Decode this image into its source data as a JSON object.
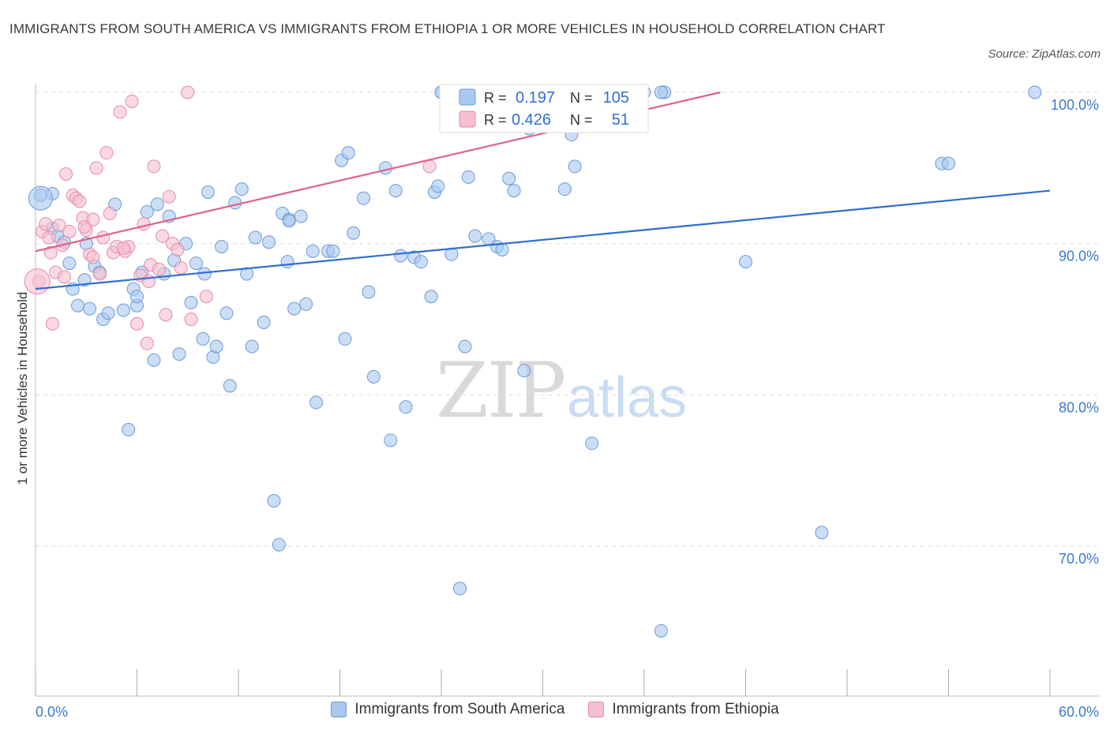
{
  "title": "IMMIGRANTS FROM SOUTH AMERICA VS IMMIGRANTS FROM ETHIOPIA 1 OR MORE VEHICLES IN HOUSEHOLD CORRELATION CHART",
  "source": "Source: ZipAtlas.com",
  "watermark": {
    "zip": "ZIP",
    "atlas": "atlas"
  },
  "colors": {
    "blue": "#a9c8f0",
    "blue_stroke": "#6b9ad8",
    "blue_line": "#2f6fd0",
    "pink": "#f6bfd0",
    "pink_stroke": "#e48aa8",
    "pink_line": "#e0628a",
    "axis_text": "#3b78c9"
  },
  "legend": {
    "r_label": "R =",
    "n_label": "N =",
    "rows": [
      {
        "r": "0.197",
        "n": "105"
      },
      {
        "r": "0.426",
        "n": "51"
      }
    ]
  },
  "bottom_legend": [
    "Immigrants from South America",
    "Immigrants from Ethiopia"
  ],
  "chart_data": {
    "type": "scatter",
    "title": "IMMIGRANTS FROM SOUTH AMERICA VS IMMIGRANTS FROM ETHIOPIA 1 OR MORE VEHICLES IN HOUSEHOLD CORRELATION CHART",
    "xlabel": "",
    "ylabel": "1 or more Vehicles in Household",
    "xlim": [
      0,
      60
    ],
    "ylim": [
      60,
      100
    ],
    "x_tick_labels": [
      "0.0%",
      "60.0%"
    ],
    "y_tick_labels": [
      "100.0%",
      "90.0%",
      "80.0%",
      "70.0%"
    ],
    "y_ticks": [
      100,
      90,
      80,
      70
    ],
    "grid": true,
    "legend_position": "top-center",
    "series": [
      {
        "name": "Immigrants from South America",
        "r": 0.197,
        "n": 105,
        "trend": [
          [
            0,
            87.0
          ],
          [
            60,
            93.5
          ]
        ],
        "points": [
          [
            0.3,
            93.2
          ],
          [
            1.0,
            93.3
          ],
          [
            1.0,
            91.0
          ],
          [
            1.3,
            90.5
          ],
          [
            1.7,
            90.1
          ],
          [
            2.0,
            88.7
          ],
          [
            2.2,
            87.0
          ],
          [
            2.5,
            85.9
          ],
          [
            2.9,
            87.6
          ],
          [
            3.2,
            85.7
          ],
          [
            3.5,
            88.5
          ],
          [
            3.8,
            88.1
          ],
          [
            4.0,
            85.0
          ],
          [
            4.3,
            85.4
          ],
          [
            4.7,
            92.6
          ],
          [
            5.2,
            85.6
          ],
          [
            5.5,
            77.7
          ],
          [
            5.8,
            87.0
          ],
          [
            6.0,
            85.9
          ],
          [
            6.3,
            88.1
          ],
          [
            6.6,
            92.1
          ],
          [
            7.0,
            82.3
          ],
          [
            7.2,
            92.6
          ],
          [
            7.6,
            88.0
          ],
          [
            7.9,
            91.8
          ],
          [
            8.2,
            88.9
          ],
          [
            8.5,
            82.7
          ],
          [
            8.9,
            90.0
          ],
          [
            9.2,
            86.1
          ],
          [
            9.5,
            88.7
          ],
          [
            9.9,
            83.7
          ],
          [
            10.2,
            93.4
          ],
          [
            10.5,
            82.5
          ],
          [
            10.7,
            83.2
          ],
          [
            11.0,
            89.8
          ],
          [
            11.3,
            85.4
          ],
          [
            11.5,
            80.6
          ],
          [
            11.8,
            92.7
          ],
          [
            12.2,
            93.6
          ],
          [
            12.5,
            88.0
          ],
          [
            12.8,
            83.2
          ],
          [
            13.0,
            90.4
          ],
          [
            13.5,
            84.8
          ],
          [
            13.8,
            90.1
          ],
          [
            14.1,
            73.0
          ],
          [
            14.4,
            70.1
          ],
          [
            14.6,
            92.0
          ],
          [
            14.9,
            88.8
          ],
          [
            15.0,
            91.6
          ],
          [
            15.3,
            85.7
          ],
          [
            15.7,
            91.8
          ],
          [
            16.0,
            86.0
          ],
          [
            16.4,
            89.5
          ],
          [
            16.6,
            79.5
          ],
          [
            17.3,
            89.5
          ],
          [
            17.6,
            89.5
          ],
          [
            18.1,
            95.5
          ],
          [
            18.3,
            83.7
          ],
          [
            18.5,
            96.0
          ],
          [
            18.8,
            90.7
          ],
          [
            19.4,
            93.0
          ],
          [
            19.7,
            86.8
          ],
          [
            20.0,
            81.2
          ],
          [
            20.7,
            95.0
          ],
          [
            21.0,
            77.0
          ],
          [
            21.3,
            93.5
          ],
          [
            21.6,
            89.2
          ],
          [
            21.9,
            79.2
          ],
          [
            22.4,
            89.1
          ],
          [
            22.8,
            88.8
          ],
          [
            23.4,
            86.5
          ],
          [
            23.6,
            93.4
          ],
          [
            23.8,
            93.8
          ],
          [
            24.0,
            100.0
          ],
          [
            24.6,
            89.3
          ],
          [
            25.1,
            67.2
          ],
          [
            25.4,
            83.2
          ],
          [
            25.6,
            94.4
          ],
          [
            26.0,
            90.5
          ],
          [
            26.8,
            90.3
          ],
          [
            27.3,
            89.8
          ],
          [
            27.6,
            89.6
          ],
          [
            28.0,
            94.3
          ],
          [
            28.3,
            93.5
          ],
          [
            28.9,
            81.6
          ],
          [
            29.2,
            97.6
          ],
          [
            31.3,
            93.6
          ],
          [
            31.7,
            97.2
          ],
          [
            31.9,
            95.1
          ],
          [
            32.9,
            76.8
          ],
          [
            34.3,
            100.0
          ],
          [
            36.0,
            100.0
          ],
          [
            37.0,
            64.4
          ],
          [
            37.2,
            100.0
          ],
          [
            42.0,
            88.8
          ],
          [
            46.5,
            70.9
          ],
          [
            53.6,
            95.3
          ],
          [
            54.0,
            95.3
          ],
          [
            59.1,
            100.0
          ],
          [
            37.0,
            100.0
          ],
          [
            24.0,
            100.0
          ],
          [
            3.0,
            90.0
          ],
          [
            6.0,
            86.5
          ],
          [
            10.0,
            88.0
          ],
          [
            15.0,
            91.5
          ]
        ]
      },
      {
        "name": "Immigrants from Ethiopia",
        "r": 0.426,
        "n": 51,
        "trend": [
          [
            0,
            89.5
          ],
          [
            40.5,
            100.0
          ]
        ],
        "points": [
          [
            0.2,
            87.5
          ],
          [
            0.4,
            90.8
          ],
          [
            0.6,
            91.3
          ],
          [
            0.8,
            90.4
          ],
          [
            0.9,
            89.4
          ],
          [
            1.0,
            84.7
          ],
          [
            1.2,
            88.1
          ],
          [
            1.4,
            91.2
          ],
          [
            1.6,
            89.9
          ],
          [
            1.7,
            87.8
          ],
          [
            1.8,
            94.6
          ],
          [
            2.0,
            90.8
          ],
          [
            2.2,
            93.2
          ],
          [
            2.4,
            93.0
          ],
          [
            2.6,
            92.8
          ],
          [
            2.8,
            91.7
          ],
          [
            3.0,
            90.9
          ],
          [
            3.2,
            89.3
          ],
          [
            3.4,
            91.6
          ],
          [
            3.6,
            95.0
          ],
          [
            3.8,
            88.0
          ],
          [
            4.0,
            90.4
          ],
          [
            4.2,
            96.0
          ],
          [
            4.4,
            92.0
          ],
          [
            4.6,
            89.4
          ],
          [
            4.8,
            89.8
          ],
          [
            5.0,
            98.7
          ],
          [
            5.3,
            89.5
          ],
          [
            5.5,
            89.8
          ],
          [
            5.7,
            99.4
          ],
          [
            6.0,
            84.7
          ],
          [
            6.2,
            87.9
          ],
          [
            6.4,
            91.3
          ],
          [
            6.6,
            83.4
          ],
          [
            6.8,
            88.6
          ],
          [
            7.0,
            95.1
          ],
          [
            7.3,
            88.3
          ],
          [
            7.5,
            90.5
          ],
          [
            7.7,
            85.3
          ],
          [
            7.9,
            93.1
          ],
          [
            8.1,
            90.0
          ],
          [
            8.4,
            89.6
          ],
          [
            8.6,
            88.4
          ],
          [
            9.0,
            100.0
          ],
          [
            9.2,
            85.0
          ],
          [
            10.1,
            86.5
          ],
          [
            5.2,
            89.7
          ],
          [
            3.4,
            89.1
          ],
          [
            2.9,
            91.1
          ],
          [
            23.3,
            95.1
          ],
          [
            6.7,
            87.5
          ]
        ]
      }
    ]
  }
}
